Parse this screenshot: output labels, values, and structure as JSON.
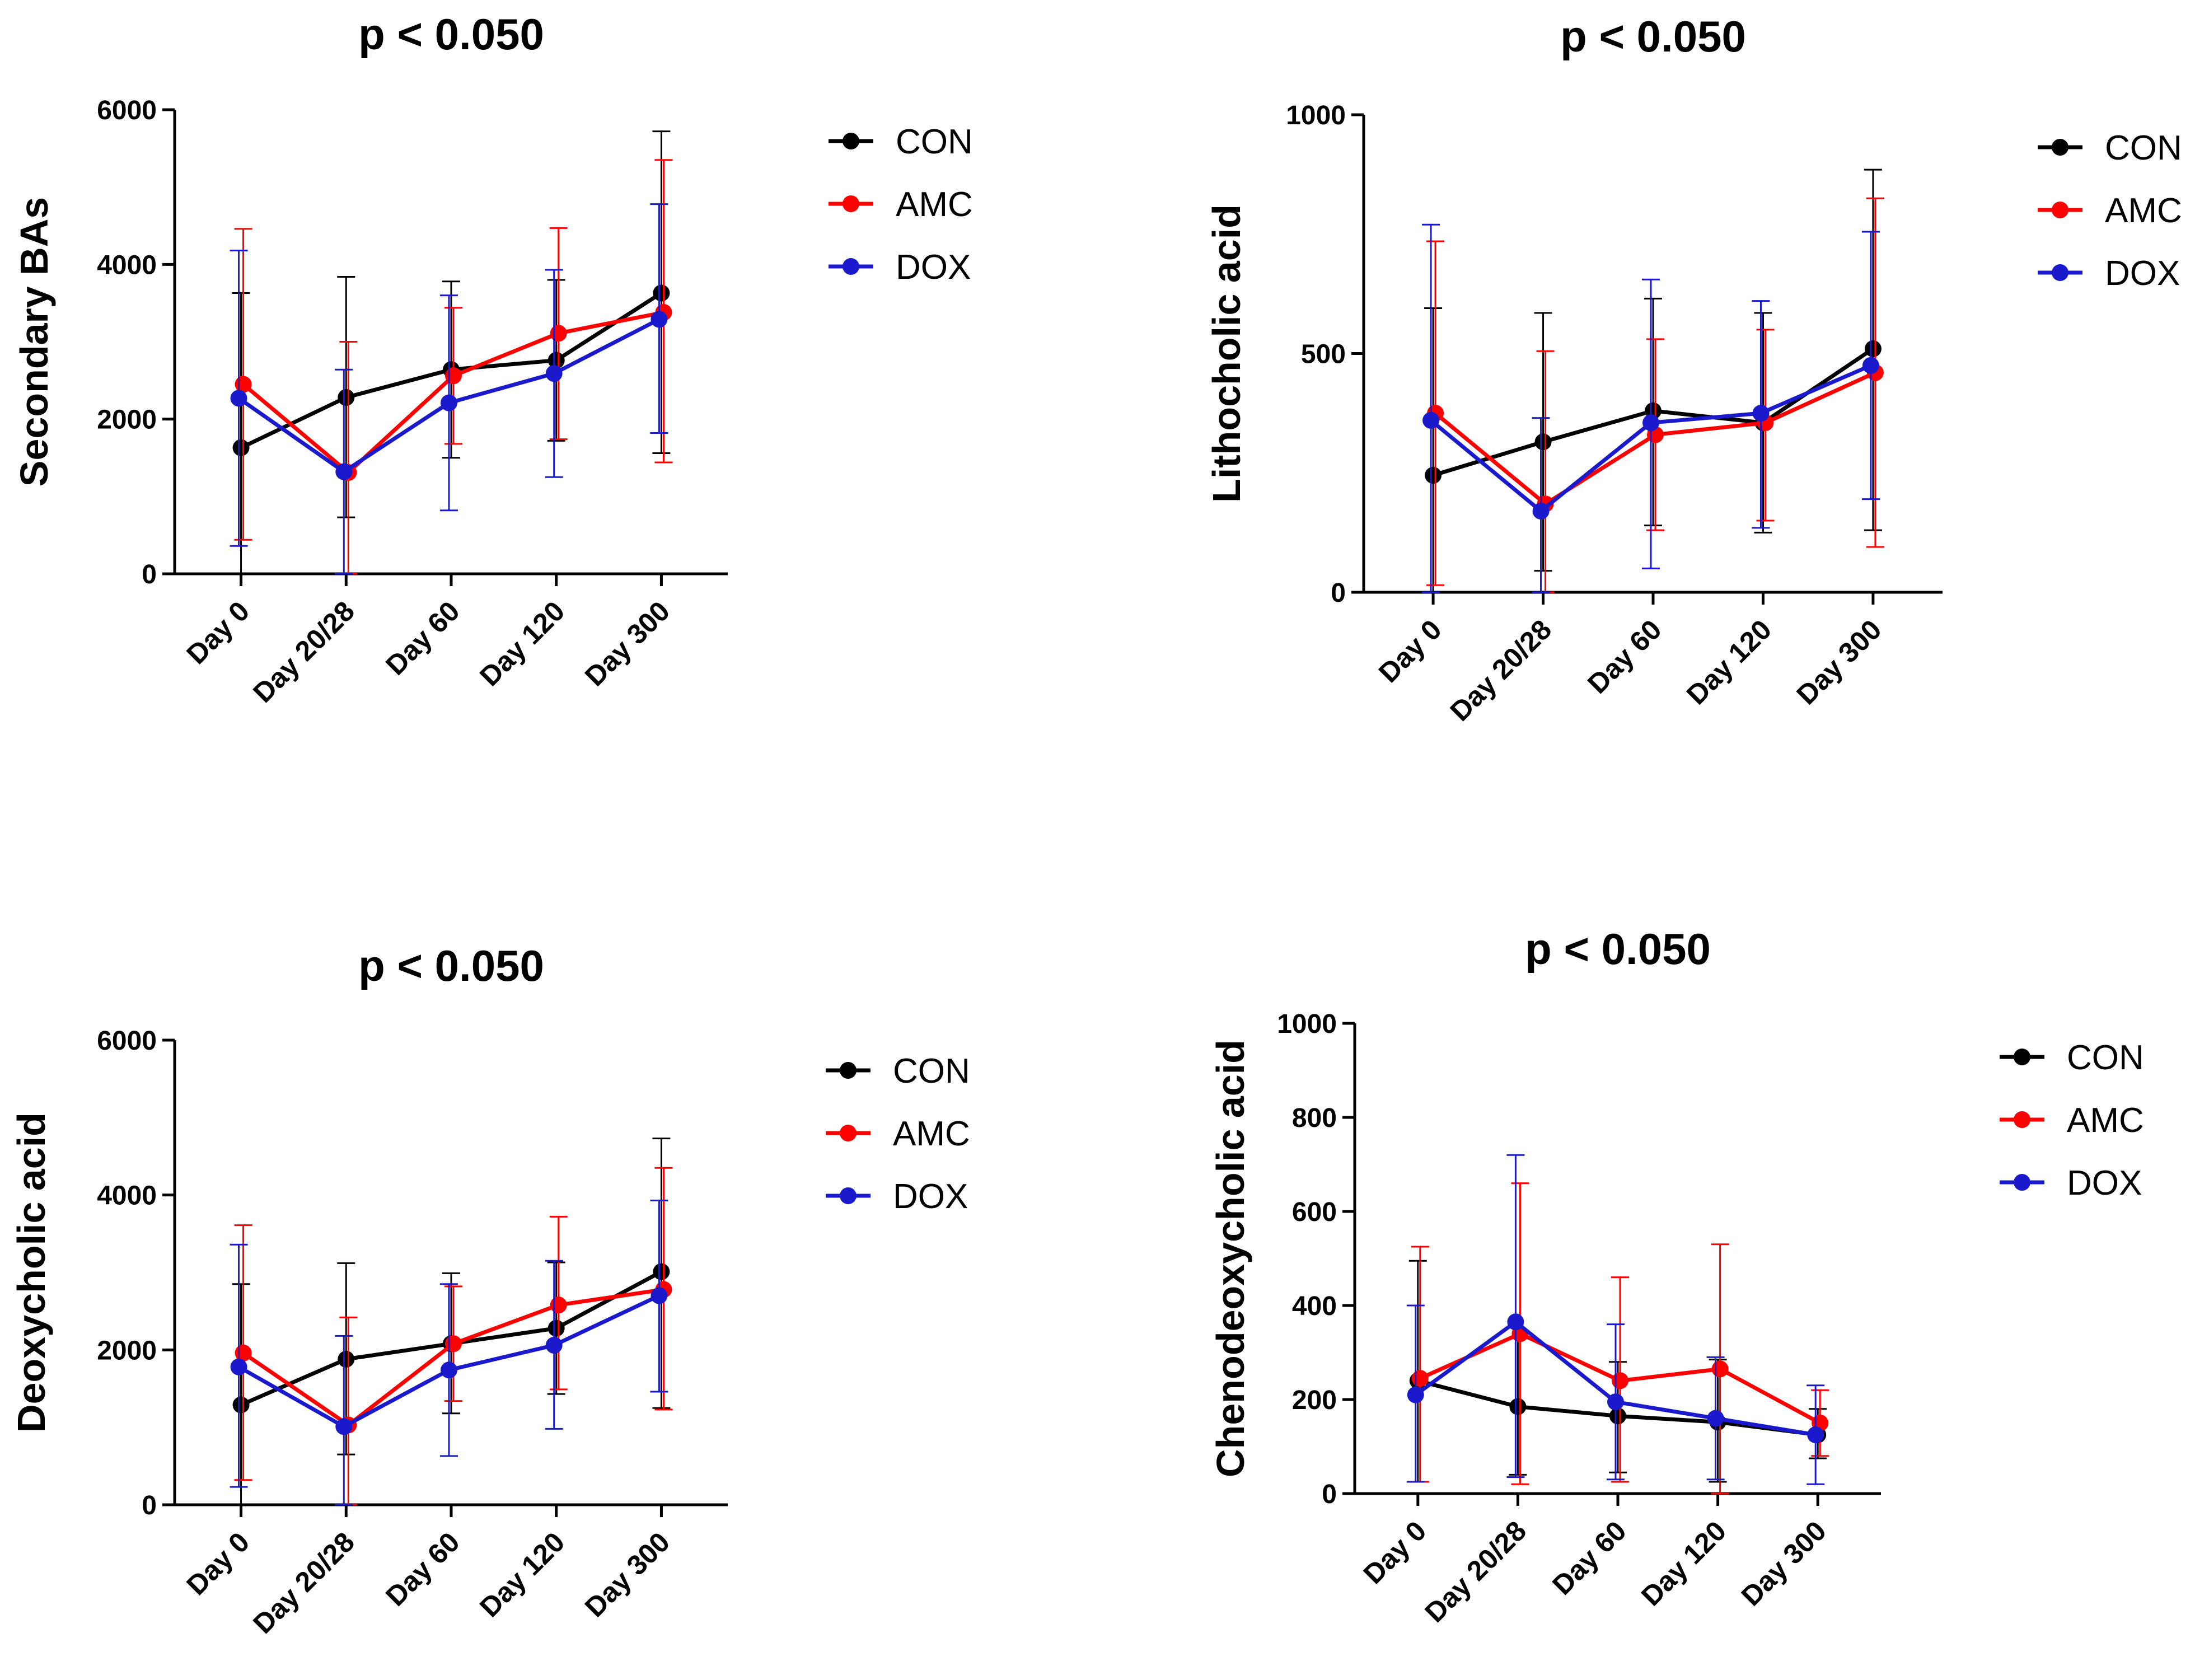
{
  "series_names": [
    "CON",
    "AMC",
    "DOX"
  ],
  "colors": {
    "CON": "#000000",
    "AMC": "#ff0000",
    "DOX": "#1a1acc"
  },
  "chart_data": [
    {
      "type": "line",
      "title": "p < 0.050",
      "ylabel": "Secondary BAs",
      "xlabel": "",
      "categories": [
        "Day 0",
        "Day 20/28",
        "Day 60",
        "Day 120",
        "Day 300"
      ],
      "ylim": [
        0,
        6000
      ],
      "yticks": [
        "0",
        "2000",
        "4000",
        "6000"
      ],
      "ytick_values": [
        0,
        2000,
        4000,
        6000
      ],
      "legend": [
        "CON",
        "AMC",
        "DOX"
      ],
      "series": [
        {
          "name": "CON",
          "values": [
            1630,
            2280,
            2640,
            2760,
            3630
          ],
          "err_low": [
            0,
            730,
            1500,
            1720,
            1560
          ],
          "err_high": [
            3630,
            3840,
            3780,
            3800,
            5720
          ]
        },
        {
          "name": "AMC",
          "values": [
            2450,
            1310,
            2560,
            3110,
            3380
          ],
          "err_low": [
            440,
            0,
            1680,
            1740,
            1440
          ],
          "err_high": [
            4460,
            3000,
            3440,
            4470,
            5350
          ]
        },
        {
          "name": "DOX",
          "values": [
            2270,
            1320,
            2210,
            2590,
            3290
          ],
          "err_low": [
            360,
            0,
            820,
            1250,
            1820
          ],
          "err_high": [
            4180,
            2640,
            3600,
            3930,
            4780
          ]
        }
      ]
    },
    {
      "type": "line",
      "title": "p < 0.050",
      "ylabel": "Lithocholic acid",
      "xlabel": "",
      "categories": [
        "Day 0",
        "Day 20/28",
        "Day 60",
        "Day 120",
        "Day 300"
      ],
      "ylim": [
        0,
        1000
      ],
      "yticks": [
        "0",
        "500",
        "1000"
      ],
      "ytick_values": [
        0,
        500,
        1000
      ],
      "legend": [
        "CON",
        "AMC",
        "DOX"
      ],
      "series": [
        {
          "name": "CON",
          "values": [
            245,
            315,
            380,
            355,
            510
          ],
          "err_low": [
            0,
            45,
            140,
            125,
            130
          ],
          "err_high": [
            595,
            585,
            615,
            585,
            885
          ]
        },
        {
          "name": "AMC",
          "values": [
            375,
            185,
            330,
            355,
            460
          ],
          "err_low": [
            15,
            0,
            130,
            150,
            95
          ],
          "err_high": [
            735,
            505,
            530,
            550,
            825
          ]
        },
        {
          "name": "DOX",
          "values": [
            360,
            170,
            355,
            375,
            475
          ],
          "err_low": [
            0,
            0,
            50,
            135,
            195
          ],
          "err_high": [
            770,
            365,
            655,
            610,
            755
          ]
        }
      ]
    },
    {
      "type": "line",
      "title": "p < 0.050",
      "ylabel": "Deoxycholic acid",
      "xlabel": "",
      "categories": [
        "Day 0",
        "Day 20/28",
        "Day 60",
        "Day 120",
        "Day 300"
      ],
      "ylim": [
        0,
        6000
      ],
      "yticks": [
        "0",
        "2000",
        "4000",
        "6000"
      ],
      "ytick_values": [
        0,
        2000,
        4000,
        6000
      ],
      "legend": [
        "CON",
        "AMC",
        "DOX"
      ],
      "series": [
        {
          "name": "CON",
          "values": [
            1290,
            1880,
            2080,
            2280,
            3010
          ],
          "err_low": [
            0,
            650,
            1180,
            1430,
            1250
          ],
          "err_high": [
            2850,
            3120,
            2990,
            3130,
            4730
          ]
        },
        {
          "name": "AMC",
          "values": [
            1960,
            1030,
            2080,
            2580,
            2780
          ],
          "err_low": [
            320,
            0,
            1340,
            1490,
            1230
          ],
          "err_high": [
            3610,
            2420,
            2820,
            3720,
            4350
          ]
        },
        {
          "name": "DOX",
          "values": [
            1780,
            1010,
            1740,
            2060,
            2700
          ],
          "err_low": [
            230,
            0,
            630,
            980,
            1460
          ],
          "err_high": [
            3360,
            2180,
            2850,
            3150,
            3930
          ]
        }
      ]
    },
    {
      "type": "line",
      "title": "p < 0.050",
      "ylabel": "Chenodeoxycholic acid",
      "xlabel": "",
      "categories": [
        "Day 0",
        "Day 20/28",
        "Day 60",
        "Day 120",
        "Day 300"
      ],
      "ylim": [
        0,
        1000
      ],
      "yticks": [
        "0",
        "200",
        "400",
        "600",
        "800",
        "1000"
      ],
      "ytick_values": [
        0,
        200,
        400,
        600,
        800,
        1000
      ],
      "legend": [
        "CON",
        "AMC",
        "DOX"
      ],
      "series": [
        {
          "name": "CON",
          "values": [
            240,
            185,
            165,
            152,
            125
          ],
          "err_low": [
            25,
            40,
            45,
            25,
            75
          ],
          "err_high": [
            495,
            330,
            280,
            285,
            180
          ]
        },
        {
          "name": "AMC",
          "values": [
            245,
            340,
            240,
            265,
            150
          ],
          "err_low": [
            25,
            20,
            25,
            0,
            80
          ],
          "err_high": [
            525,
            660,
            460,
            530,
            220
          ]
        },
        {
          "name": "DOX",
          "values": [
            210,
            365,
            195,
            160,
            125
          ],
          "err_low": [
            25,
            35,
            30,
            30,
            20
          ],
          "err_high": [
            400,
            720,
            360,
            290,
            230
          ]
        }
      ]
    }
  ]
}
